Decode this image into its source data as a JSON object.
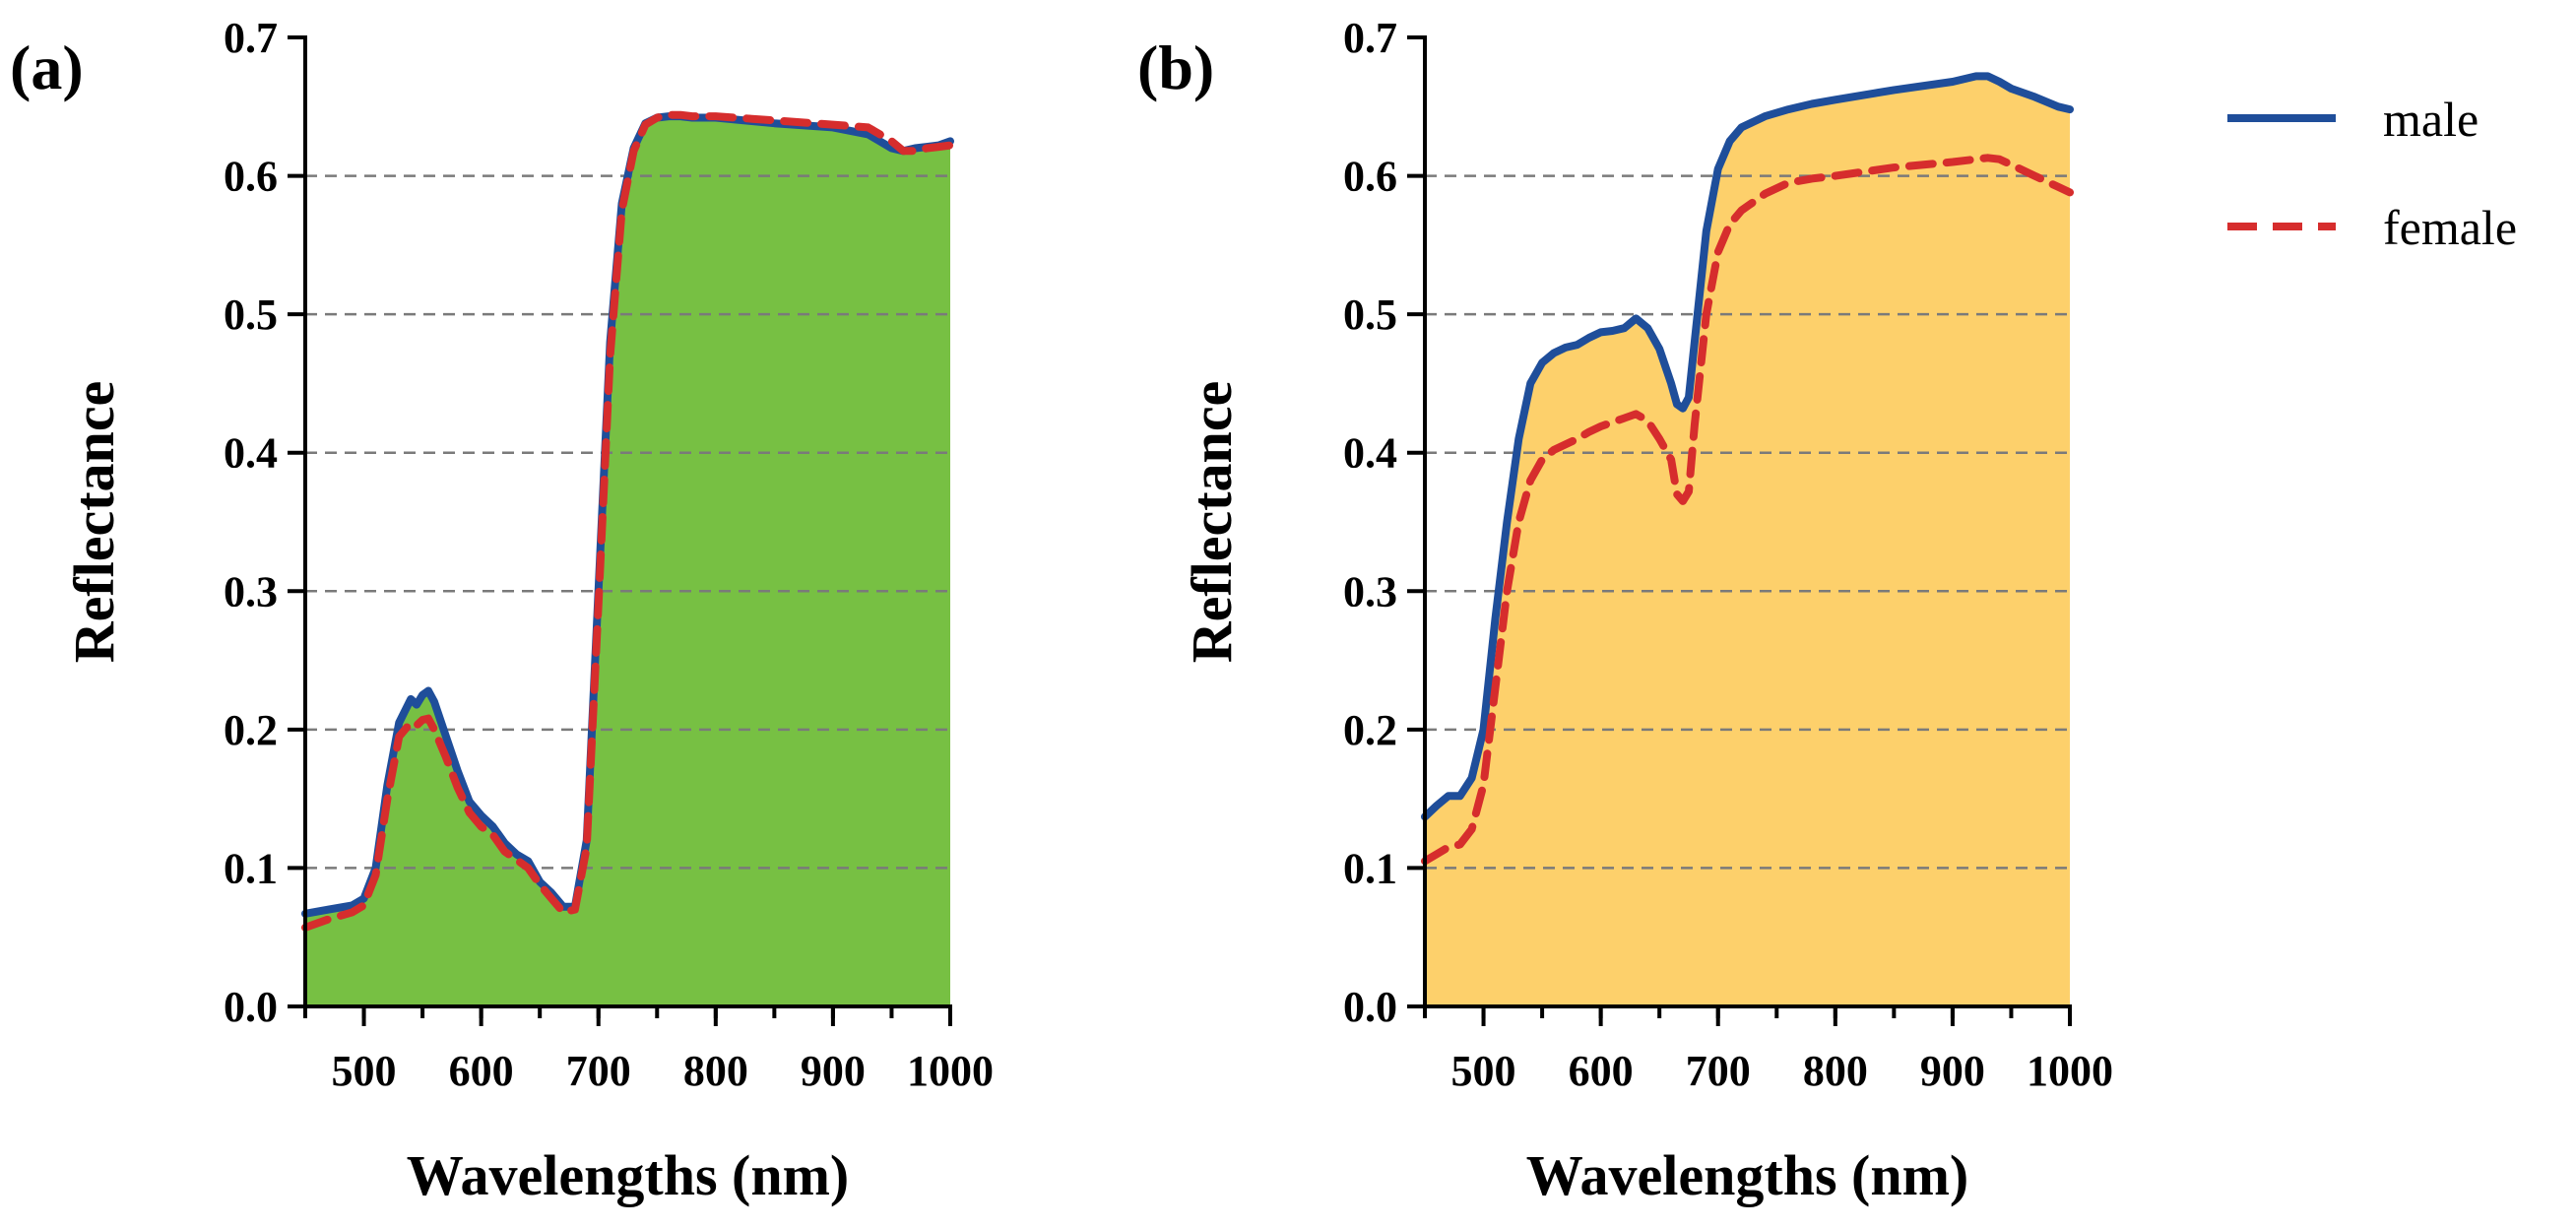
{
  "chart_data": [
    {
      "type": "area",
      "panel_label": "(a)",
      "xlabel": "Wavelengths (nm)",
      "ylabel": "Reflectance",
      "xlim": [
        450,
        1000
      ],
      "ylim": [
        0.0,
        0.7
      ],
      "xticks": [
        500,
        600,
        700,
        800,
        900,
        1000
      ],
      "xtick_labels": [
        "500",
        "600",
        "700",
        "800",
        "900",
        "1000"
      ],
      "yticks": [
        0.0,
        0.1,
        0.2,
        0.3,
        0.4,
        0.5,
        0.6,
        0.7
      ],
      "ytick_labels": [
        "0.0",
        "0.1",
        "0.2",
        "0.3",
        "0.4",
        "0.5",
        "0.6",
        "0.7"
      ],
      "grid": "horizontal dashed",
      "fill_color": "#77c043",
      "series": [
        {
          "name": "male",
          "color": "#1f4e9a",
          "style": "solid",
          "x": [
            450,
            470,
            490,
            500,
            510,
            520,
            530,
            540,
            545,
            550,
            555,
            560,
            570,
            580,
            590,
            600,
            610,
            620,
            630,
            640,
            650,
            660,
            670,
            680,
            690,
            700,
            710,
            720,
            730,
            740,
            750,
            760,
            770,
            780,
            800,
            850,
            900,
            930,
            950,
            960,
            970,
            980,
            990,
            1000
          ],
          "y": [
            0.067,
            0.07,
            0.073,
            0.078,
            0.1,
            0.16,
            0.205,
            0.222,
            0.218,
            0.225,
            0.228,
            0.22,
            0.195,
            0.17,
            0.148,
            0.138,
            0.13,
            0.118,
            0.11,
            0.105,
            0.09,
            0.082,
            0.072,
            0.072,
            0.12,
            0.3,
            0.48,
            0.58,
            0.62,
            0.638,
            0.642,
            0.643,
            0.643,
            0.642,
            0.642,
            0.638,
            0.635,
            0.63,
            0.62,
            0.618,
            0.62,
            0.621,
            0.622,
            0.625
          ]
        },
        {
          "name": "female",
          "color": "#d62d2d",
          "style": "dashed",
          "x": [
            450,
            470,
            490,
            500,
            510,
            520,
            530,
            540,
            545,
            550,
            555,
            560,
            570,
            580,
            590,
            600,
            610,
            620,
            630,
            640,
            650,
            660,
            670,
            680,
            690,
            700,
            710,
            720,
            730,
            740,
            750,
            760,
            770,
            780,
            800,
            850,
            900,
            930,
            950,
            960,
            970,
            980,
            990,
            1000
          ],
          "y": [
            0.057,
            0.063,
            0.068,
            0.073,
            0.095,
            0.15,
            0.195,
            0.205,
            0.203,
            0.207,
            0.208,
            0.2,
            0.18,
            0.158,
            0.14,
            0.13,
            0.124,
            0.112,
            0.106,
            0.1,
            0.088,
            0.078,
            0.068,
            0.07,
            0.115,
            0.29,
            0.47,
            0.575,
            0.618,
            0.637,
            0.642,
            0.644,
            0.644,
            0.643,
            0.643,
            0.64,
            0.637,
            0.635,
            0.625,
            0.618,
            0.618,
            0.62,
            0.621,
            0.622
          ]
        }
      ]
    },
    {
      "type": "area",
      "panel_label": "(b)",
      "xlabel": "Wavelengths (nm)",
      "ylabel": "Reflectance",
      "xlim": [
        450,
        1000
      ],
      "ylim": [
        0.0,
        0.7
      ],
      "xticks": [
        500,
        600,
        700,
        800,
        900,
        1000
      ],
      "xtick_labels": [
        "500",
        "600",
        "700",
        "800",
        "900",
        "1000"
      ],
      "yticks": [
        0.0,
        0.1,
        0.2,
        0.3,
        0.4,
        0.5,
        0.6,
        0.7
      ],
      "ytick_labels": [
        "0.0",
        "0.1",
        "0.2",
        "0.3",
        "0.4",
        "0.5",
        "0.6",
        "0.7"
      ],
      "grid": "horizontal dashed",
      "fill_color": "#fdd06b",
      "series": [
        {
          "name": "male",
          "color": "#1f4e9a",
          "style": "solid",
          "x": [
            450,
            460,
            470,
            480,
            490,
            500,
            510,
            520,
            530,
            540,
            550,
            560,
            570,
            580,
            590,
            600,
            610,
            620,
            630,
            640,
            650,
            660,
            665,
            670,
            675,
            680,
            690,
            700,
            710,
            720,
            740,
            760,
            780,
            800,
            850,
            900,
            920,
            930,
            940,
            950,
            970,
            990,
            1000
          ],
          "y": [
            0.137,
            0.145,
            0.152,
            0.152,
            0.165,
            0.2,
            0.28,
            0.35,
            0.41,
            0.45,
            0.465,
            0.472,
            0.476,
            0.478,
            0.483,
            0.487,
            0.488,
            0.49,
            0.497,
            0.49,
            0.475,
            0.45,
            0.435,
            0.432,
            0.44,
            0.48,
            0.56,
            0.605,
            0.625,
            0.635,
            0.643,
            0.648,
            0.652,
            0.655,
            0.662,
            0.668,
            0.672,
            0.672,
            0.668,
            0.663,
            0.657,
            0.65,
            0.648
          ]
        },
        {
          "name": "female",
          "color": "#d62d2d",
          "style": "dashed",
          "x": [
            450,
            460,
            470,
            480,
            490,
            500,
            510,
            520,
            530,
            540,
            550,
            560,
            570,
            580,
            590,
            600,
            610,
            620,
            630,
            640,
            650,
            660,
            665,
            670,
            675,
            680,
            690,
            700,
            710,
            720,
            740,
            760,
            780,
            800,
            850,
            900,
            920,
            930,
            940,
            950,
            970,
            990,
            1000
          ],
          "y": [
            0.105,
            0.11,
            0.115,
            0.117,
            0.128,
            0.16,
            0.23,
            0.3,
            0.35,
            0.38,
            0.395,
            0.402,
            0.406,
            0.41,
            0.415,
            0.419,
            0.422,
            0.425,
            0.428,
            0.423,
            0.41,
            0.395,
            0.37,
            0.365,
            0.372,
            0.42,
            0.5,
            0.545,
            0.565,
            0.575,
            0.587,
            0.595,
            0.598,
            0.6,
            0.606,
            0.61,
            0.612,
            0.613,
            0.612,
            0.608,
            0.6,
            0.592,
            0.588
          ]
        }
      ]
    }
  ],
  "legend": {
    "placement": "right",
    "entries": [
      {
        "name": "male",
        "label": "male",
        "color": "#1f4e9a",
        "style": "solid"
      },
      {
        "name": "female",
        "label": "female",
        "color": "#d62d2d",
        "style": "dashed"
      }
    ]
  }
}
